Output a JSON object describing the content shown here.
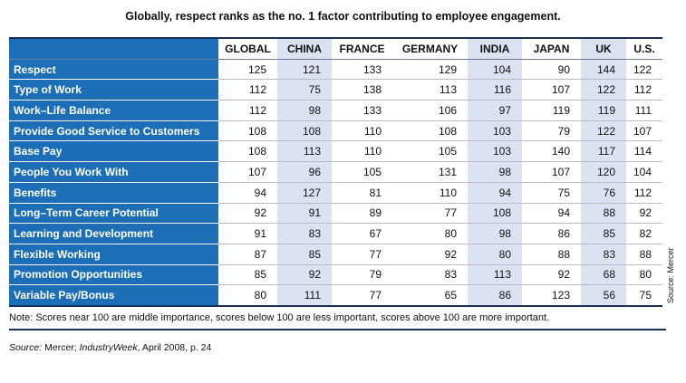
{
  "title": "Globally, respect ranks as the no. 1 factor contributing to employee engagement.",
  "table": {
    "columns": [
      "GLOBAL",
      "CHINA",
      "FRANCE",
      "GERMANY",
      "INDIA",
      "JAPAN",
      "UK",
      "U.S."
    ],
    "rows": [
      {
        "label": "Respect",
        "values": [
          125,
          121,
          133,
          129,
          104,
          90,
          144,
          122
        ]
      },
      {
        "label": "Type of Work",
        "values": [
          112,
          75,
          138,
          113,
          116,
          107,
          122,
          112
        ]
      },
      {
        "label": "Work–Life Balance",
        "values": [
          112,
          98,
          133,
          106,
          97,
          119,
          119,
          111
        ]
      },
      {
        "label": "Provide Good Service to Customers",
        "values": [
          108,
          108,
          110,
          108,
          103,
          79,
          122,
          107
        ]
      },
      {
        "label": "Base Pay",
        "values": [
          108,
          113,
          110,
          105,
          103,
          140,
          117,
          114
        ]
      },
      {
        "label": "People You Work With",
        "values": [
          107,
          96,
          105,
          131,
          98,
          107,
          120,
          104
        ]
      },
      {
        "label": "Benefits",
        "values": [
          94,
          127,
          81,
          110,
          94,
          75,
          76,
          112
        ]
      },
      {
        "label": "Long–Term Career Potential",
        "values": [
          92,
          91,
          89,
          77,
          108,
          94,
          88,
          92
        ]
      },
      {
        "label": "Learning and Development",
        "values": [
          91,
          83,
          67,
          80,
          98,
          86,
          85,
          82
        ]
      },
      {
        "label": "Flexible Working",
        "values": [
          87,
          85,
          77,
          92,
          80,
          88,
          83,
          88
        ]
      },
      {
        "label": "Promotion Opportunities",
        "values": [
          85,
          92,
          79,
          83,
          113,
          92,
          68,
          80
        ]
      },
      {
        "label": "Variable Pay/Bonus",
        "values": [
          80,
          111,
          77,
          65,
          86,
          123,
          56,
          75
        ]
      }
    ]
  },
  "side_note": "Source: Mercer",
  "note": "Note: Scores near 100 are middle importance, scores below 100 are less important, scores above 100 are more important.",
  "source": {
    "label": "Source:",
    "text": " Mercer; ",
    "publication": "IndustryWeek",
    "rest": ", April 2008, p. 24"
  }
}
